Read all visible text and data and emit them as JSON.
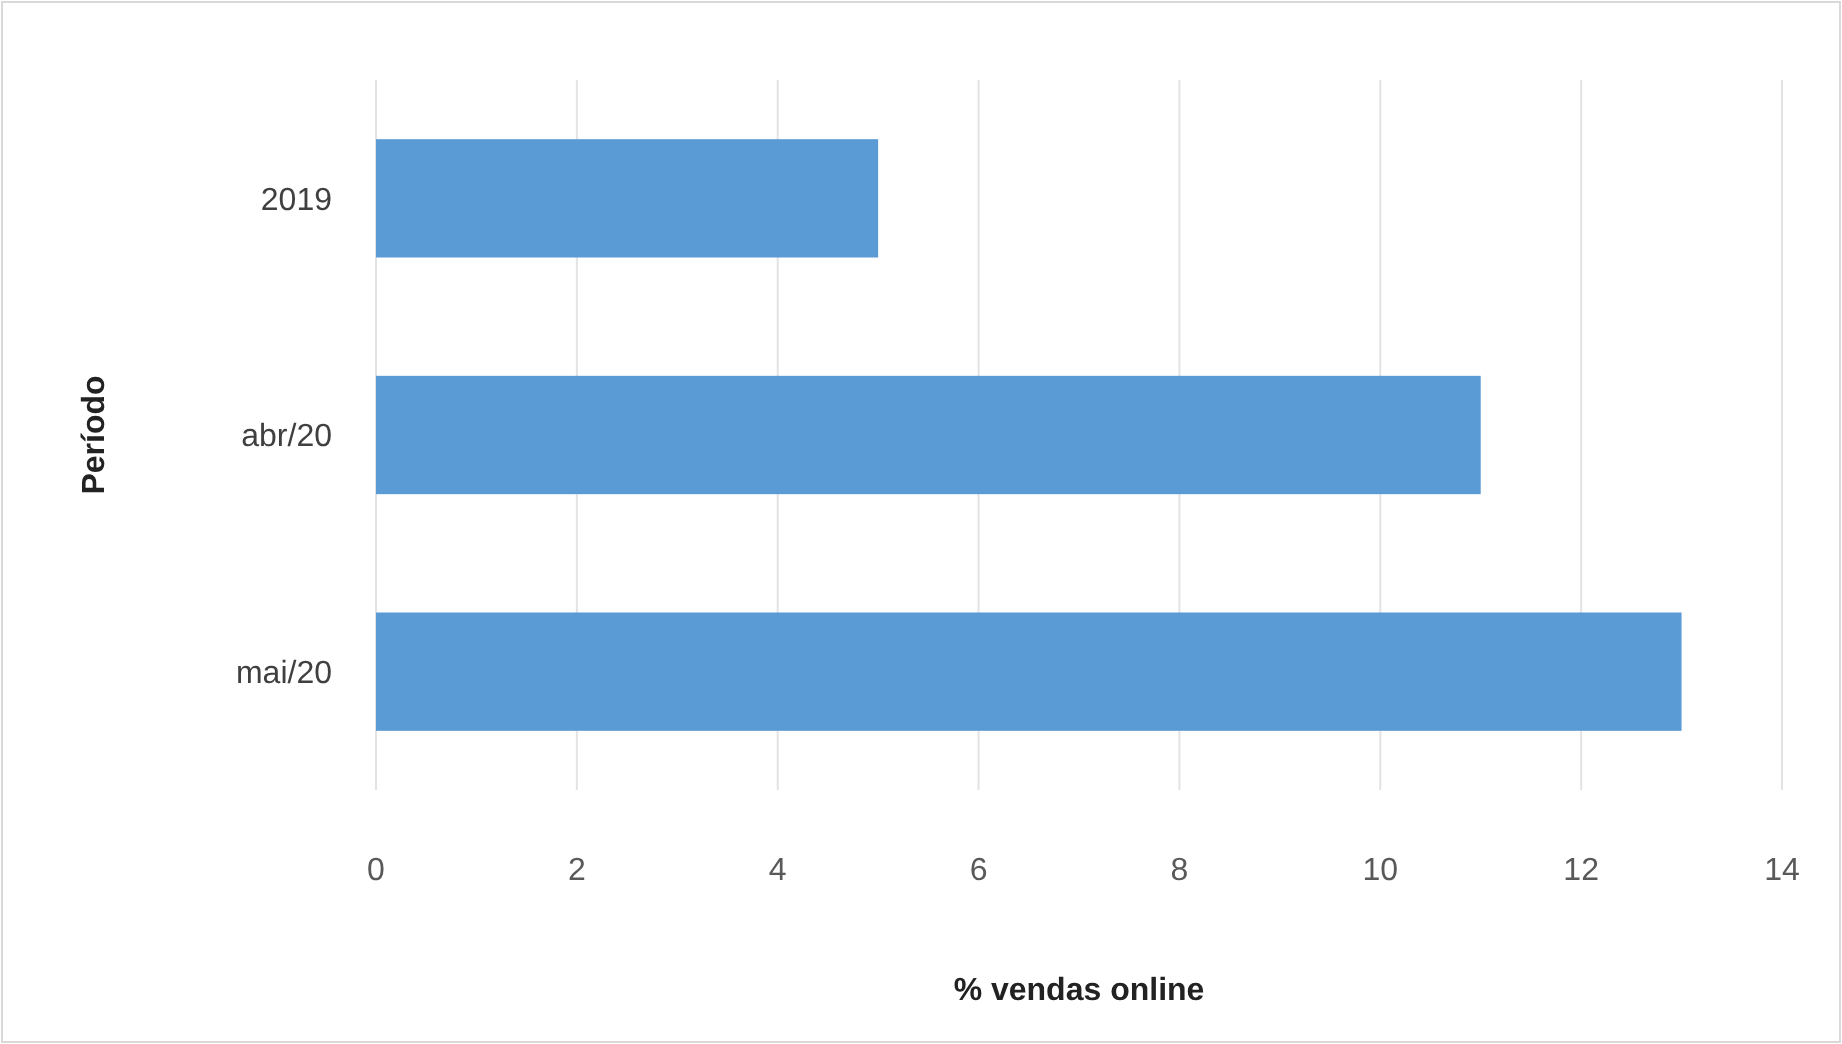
{
  "chart_data": {
    "type": "bar",
    "orientation": "horizontal",
    "xlabel": "% vendas online",
    "ylabel": "Período",
    "categories": [
      "2019",
      "abr/20",
      "mai/20"
    ],
    "series": [
      {
        "color": "#5b9bd5",
        "values": [
          5,
          11,
          13
        ]
      }
    ],
    "xlim": [
      0,
      14
    ],
    "xticks": [
      0,
      2,
      4,
      6,
      8,
      10,
      12,
      14
    ],
    "grid": "x"
  }
}
